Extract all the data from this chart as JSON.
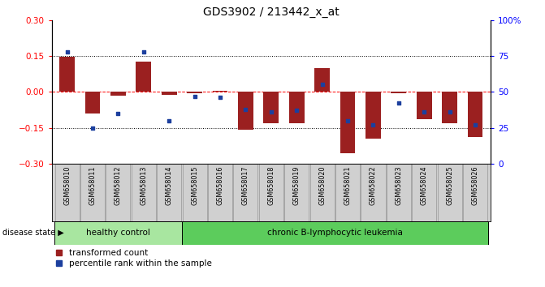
{
  "title": "GDS3902 / 213442_x_at",
  "samples": [
    "GSM658010",
    "GSM658011",
    "GSM658012",
    "GSM658013",
    "GSM658014",
    "GSM658015",
    "GSM658016",
    "GSM658017",
    "GSM658018",
    "GSM658019",
    "GSM658020",
    "GSM658021",
    "GSM658022",
    "GSM658023",
    "GSM658024",
    "GSM658025",
    "GSM658026"
  ],
  "red_values": [
    0.148,
    -0.09,
    -0.015,
    0.125,
    -0.012,
    -0.005,
    0.005,
    -0.16,
    -0.13,
    -0.13,
    0.1,
    -0.255,
    -0.195,
    -0.005,
    -0.115,
    -0.13,
    -0.19
  ],
  "blue_percentile": [
    78,
    25,
    35,
    78,
    30,
    47,
    46,
    38,
    36,
    37,
    55,
    30,
    27,
    42,
    36,
    36,
    27
  ],
  "ylim_left": [
    -0.3,
    0.3
  ],
  "ylim_right": [
    0,
    100
  ],
  "yticks_left": [
    -0.3,
    -0.15,
    0.0,
    0.15,
    0.3
  ],
  "yticks_right": [
    0,
    25,
    50,
    75,
    100
  ],
  "group1_label": "healthy control",
  "group2_label": "chronic B-lymphocytic leukemia",
  "group1_count": 5,
  "group2_count": 12,
  "disease_state_label": "disease state",
  "legend_red": "transformed count",
  "legend_blue": "percentile rank within the sample",
  "bar_color": "#9b2020",
  "blue_color": "#1c3f9e",
  "group1_color": "#a8e6a0",
  "group2_color": "#5ccc5c",
  "label_bg_color": "#d0d0d0",
  "bar_width": 0.6,
  "background_color": "#ffffff"
}
